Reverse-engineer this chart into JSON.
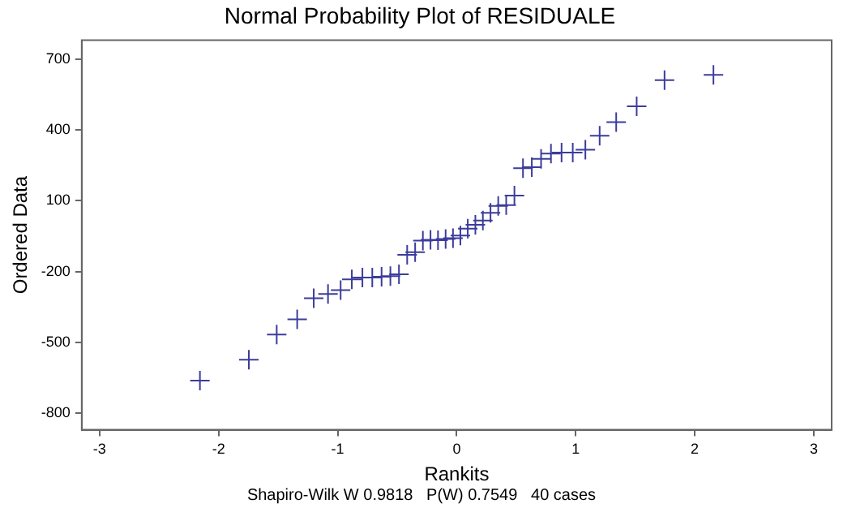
{
  "chart_data": {
    "type": "scatter",
    "title": "Normal Probability Plot of RESIDUALE",
    "xlabel": "Rankits",
    "ylabel": "Ordered Data",
    "annotations": [
      "Shapiro-Wilk W 0.9818   P(W) 0.7549   40 cases"
    ],
    "x": [
      -2.157,
      -1.746,
      -1.512,
      -1.34,
      -1.201,
      -1.081,
      -0.975,
      -0.881,
      -0.792,
      -0.709,
      -0.631,
      -0.557,
      -0.485,
      -0.416,
      -0.349,
      -0.284,
      -0.22,
      -0.157,
      -0.093,
      -0.031,
      0.031,
      0.093,
      0.157,
      0.22,
      0.284,
      0.349,
      0.416,
      0.485,
      0.557,
      0.631,
      0.709,
      0.792,
      0.881,
      0.975,
      1.081,
      1.201,
      1.34,
      1.512,
      1.746,
      2.157
    ],
    "series": [
      {
        "color": "#3c3c9c",
        "values": [
          -662,
          -573,
          -467,
          -402,
          -313,
          -295,
          -278,
          -233,
          -225,
          -225,
          -222,
          -219,
          -211,
          -129,
          -118,
          -69,
          -65,
          -67,
          -62,
          -58,
          -47,
          -18,
          -2,
          16,
          49,
          78,
          82,
          122,
          238,
          242,
          278,
          300,
          304,
          304,
          316,
          376,
          433,
          500,
          611,
          633
        ]
      }
    ],
    "xlim": [
      -3.15,
      3.15
    ],
    "xticks": [
      -3,
      -2,
      -1,
      0,
      1,
      2,
      3
    ],
    "ylim": [
      -870,
      780
    ],
    "yticks": [
      -800,
      -500,
      -200,
      100,
      400,
      700
    ],
    "grid": false,
    "legend": false,
    "marker": "cross"
  }
}
